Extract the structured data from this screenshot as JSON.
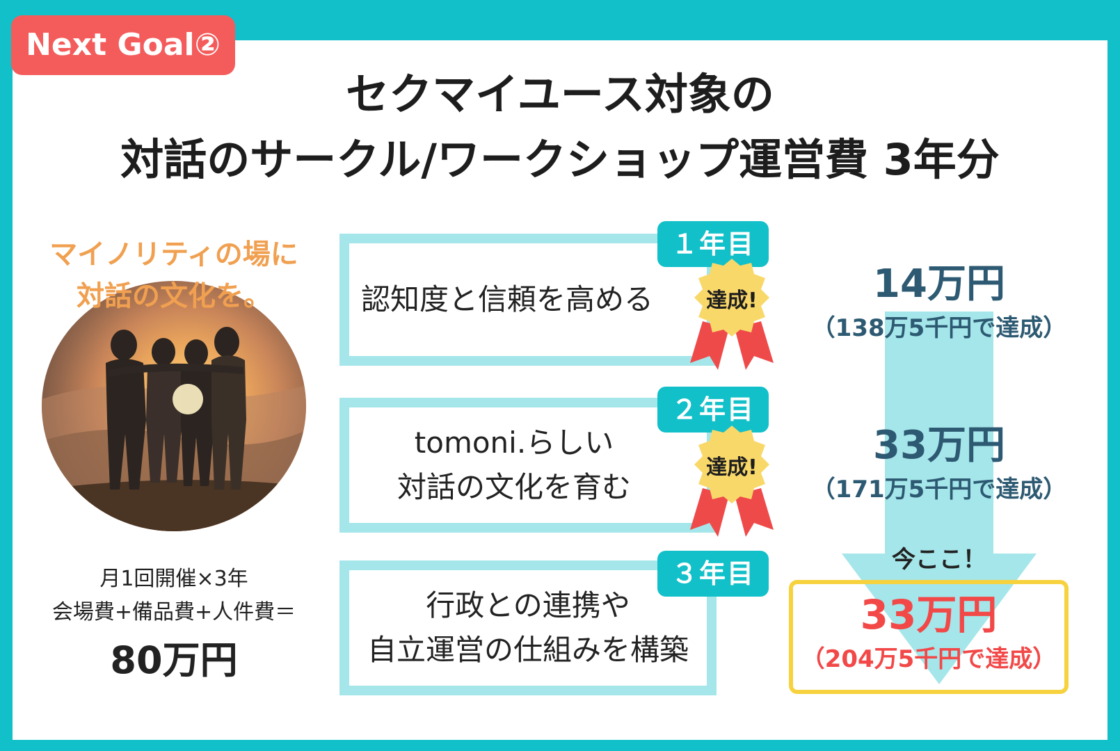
{
  "badge": "Next Goal②",
  "title_line1": "セクマイユース対象の",
  "title_line2": "対話のサークル/ワークショップ運営費 3年分",
  "tagline_line1": "マイノリティの場に",
  "tagline_line2": "対話の文化を。",
  "cost_note_line1": "月1回開催×3年",
  "cost_note_line2": "会場費+備品費+人件費＝",
  "cost_total": "80万円",
  "goals": [
    {
      "tab": "１年目",
      "lines": [
        "認知度と信頼を高める"
      ],
      "badge": "達成!",
      "amount": "14万円",
      "sub": "（138万5千円で達成）"
    },
    {
      "tab": "２年目",
      "lines": [
        "tomoni.らしい",
        "対話の文化を育む"
      ],
      "badge": "達成!",
      "amount": "33万円",
      "sub": "（171万5千円で達成）"
    },
    {
      "tab": "３年目",
      "lines": [
        "行政との連携や",
        "自立運営の仕組みを構築"
      ],
      "amount": "33万円",
      "sub": "（204万5千円で達成）"
    }
  ],
  "current_label": "今ここ！",
  "colors": {
    "frame": "#12c0c9",
    "badge": "#f45c5c",
    "box_border": "#a5e6ea",
    "tagline": "#f0a050",
    "amount": "#2d5a72",
    "current_amount": "#f24848",
    "current_border": "#f7d23f",
    "achieved_seal": "#f9d86a",
    "ribbon": "#ef4a4a"
  },
  "icons": [
    "achievement-seal-icon",
    "down-arrow-icon",
    "group-photo"
  ]
}
